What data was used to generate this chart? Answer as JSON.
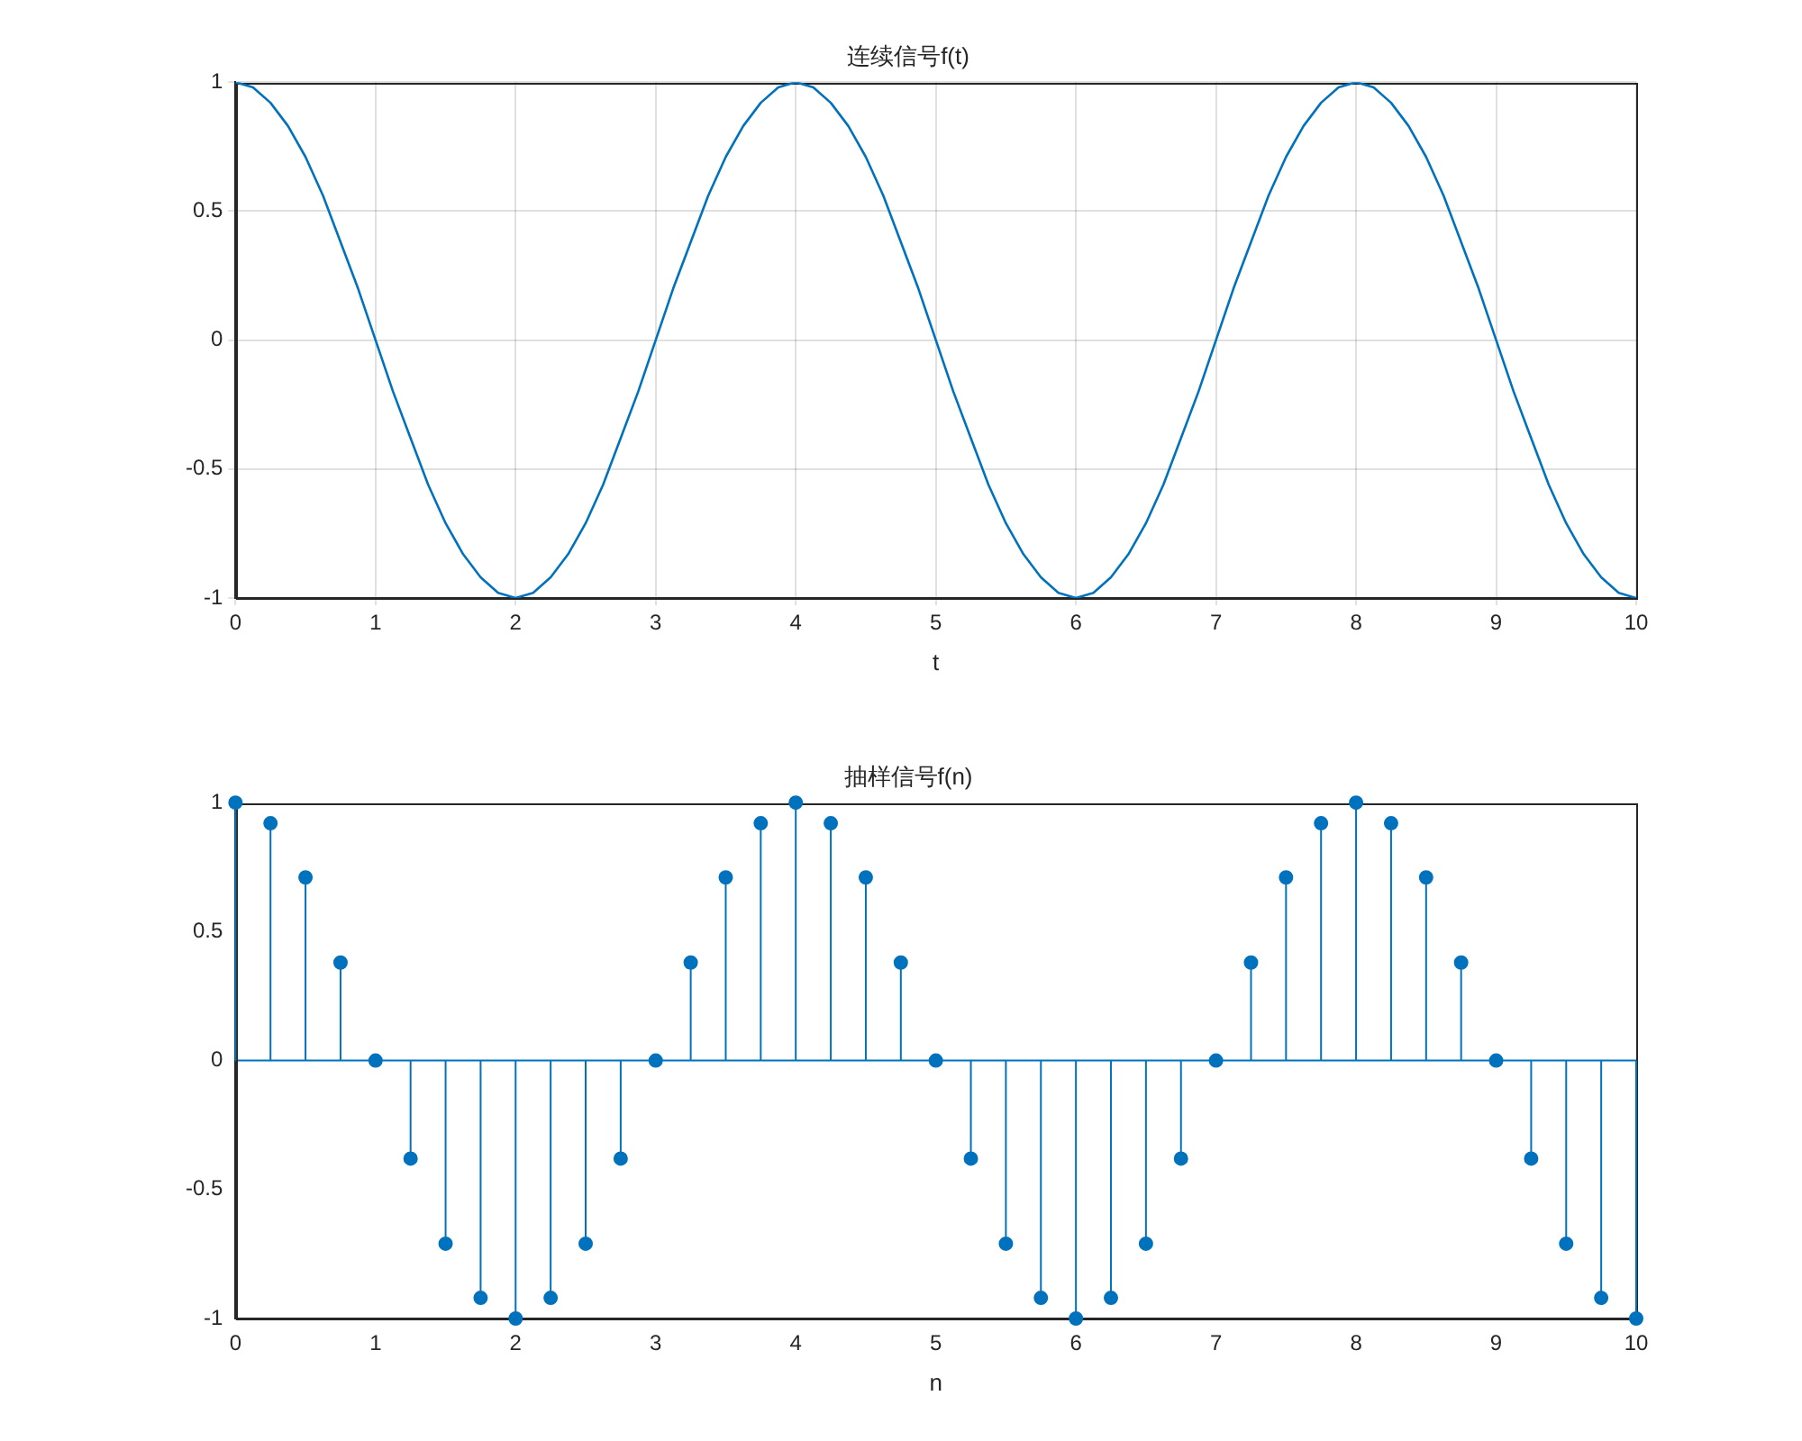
{
  "chart_data": [
    {
      "type": "line",
      "title": "连续信号f(t)",
      "xlabel": "t",
      "xlim": [
        0,
        10
      ],
      "ylim": [
        -1,
        1
      ],
      "xticks": [
        0,
        1,
        2,
        3,
        4,
        5,
        6,
        7,
        8,
        9,
        10
      ],
      "yticks": [
        -1,
        -0.5,
        0,
        0.5,
        1
      ],
      "grid": true,
      "legend": false,
      "marker": "none",
      "series": [
        {
          "color": "#0072bd",
          "x": [
            0,
            0.125,
            0.25,
            0.375,
            0.5,
            0.625,
            0.75,
            0.875,
            1,
            1.125,
            1.25,
            1.375,
            1.5,
            1.625,
            1.75,
            1.875,
            2,
            2.125,
            2.25,
            2.375,
            2.5,
            2.625,
            2.75,
            2.875,
            3,
            3.125,
            3.25,
            3.375,
            3.5,
            3.625,
            3.75,
            3.875,
            4,
            4.125,
            4.25,
            4.375,
            4.5,
            4.625,
            4.75,
            4.875,
            5,
            5.125,
            5.25,
            5.375,
            5.5,
            5.625,
            5.75,
            5.875,
            6,
            6.125,
            6.25,
            6.375,
            6.5,
            6.625,
            6.75,
            6.875,
            7,
            7.125,
            7.25,
            7.375,
            7.5,
            7.625,
            7.75,
            7.875,
            8,
            8.125,
            8.25,
            8.375,
            8.5,
            8.625,
            8.75,
            8.875,
            9,
            9.125,
            9.25,
            9.375,
            9.5,
            9.625,
            9.75,
            9.875,
            10
          ],
          "values": [
            1,
            0.98,
            0.92,
            0.83,
            0.71,
            0.56,
            0.38,
            0.2,
            0,
            -0.2,
            -0.38,
            -0.56,
            -0.71,
            -0.83,
            -0.92,
            -0.98,
            -1,
            -0.98,
            -0.92,
            -0.83,
            -0.71,
            -0.56,
            -0.38,
            -0.2,
            0,
            0.2,
            0.38,
            0.56,
            0.71,
            0.83,
            0.92,
            0.98,
            1,
            0.98,
            0.92,
            0.83,
            0.71,
            0.56,
            0.38,
            0.2,
            0,
            -0.2,
            -0.38,
            -0.56,
            -0.71,
            -0.83,
            -0.92,
            -0.98,
            -1,
            -0.98,
            -0.92,
            -0.83,
            -0.71,
            -0.56,
            -0.38,
            -0.2,
            0,
            0.2,
            0.38,
            0.56,
            0.71,
            0.83,
            0.92,
            0.98,
            1,
            0.98,
            0.92,
            0.83,
            0.71,
            0.56,
            0.38,
            0.2,
            0,
            -0.2,
            -0.38,
            -0.56,
            -0.71,
            -0.83,
            -0.92,
            -0.98,
            -1
          ]
        }
      ]
    },
    {
      "type": "lollipop",
      "title": "抽样信号f(n)",
      "ref_lines": [
        {
          "axis": "y",
          "value": 0,
          "color": "#0072bd"
        }
      ],
      "xlabel": "n",
      "xlim": [
        0,
        10
      ],
      "ylim": [
        -1,
        1
      ],
      "xticks": [
        0,
        1,
        2,
        3,
        4,
        5,
        6,
        7,
        8,
        9,
        10
      ],
      "yticks": [
        -1,
        -0.5,
        0,
        0.5,
        1
      ],
      "grid": false,
      "legend": false,
      "marker": "circle",
      "series": [
        {
          "color": "#0072bd",
          "x": [
            0,
            0.25,
            0.5,
            0.75,
            1,
            1.25,
            1.5,
            1.75,
            2,
            2.25,
            2.5,
            2.75,
            3,
            3.25,
            3.5,
            3.75,
            4,
            4.25,
            4.5,
            4.75,
            5,
            5.25,
            5.5,
            5.75,
            6,
            6.25,
            6.5,
            6.75,
            7,
            7.25,
            7.5,
            7.75,
            8,
            8.25,
            8.5,
            8.75,
            9,
            9.25,
            9.5,
            9.75,
            10
          ],
          "values": [
            1,
            0.92,
            0.71,
            0.38,
            0,
            -0.38,
            -0.71,
            -0.92,
            -1,
            -0.92,
            -0.71,
            -0.38,
            0,
            0.38,
            0.71,
            0.92,
            1,
            0.92,
            0.71,
            0.38,
            0,
            -0.38,
            -0.71,
            -0.92,
            -1,
            -0.92,
            -0.71,
            -0.38,
            0,
            0.38,
            0.71,
            0.92,
            1,
            0.92,
            0.71,
            0.38,
            0,
            -0.38,
            -0.71,
            -0.92,
            -1
          ]
        }
      ]
    }
  ]
}
